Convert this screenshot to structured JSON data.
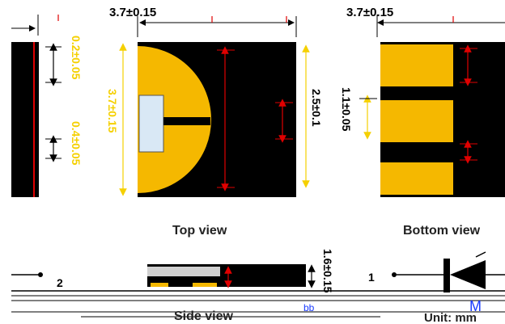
{
  "colors": {
    "package": "#000000",
    "pad": "#f5b800",
    "lens": "#d9e8f5",
    "arrow_red": "#e00000",
    "arrow_yellow": "#f5d000",
    "blue": "#1a3cff"
  },
  "top_dims": {
    "left_width": "3.7±0.15",
    "right_width": "3.7±0.15"
  },
  "side_dims": {
    "dim_a": "0.2±0.05",
    "dim_b": "0.4±0.05",
    "dim_c": "3.7±0.15",
    "dim_d": "2.5±0.1",
    "dim_e": "1.1±0.05",
    "dim_f": "1.6±0.15"
  },
  "labels": {
    "top_view": "Top view",
    "bottom_view": "Bottom view",
    "side_view": "Side view",
    "unit": "Unit: mm",
    "pin1": "1",
    "pin2": "2",
    "bb": "bb",
    "m": "M"
  }
}
